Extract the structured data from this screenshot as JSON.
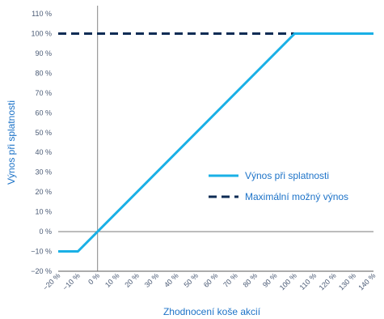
{
  "chart_data": {
    "type": "line",
    "xlabel": "Zhodnocení koše akcií",
    "ylabel": "Výnos při splatnosti",
    "xlim": [
      -20,
      140
    ],
    "ylim": [
      -20,
      110
    ],
    "x_ticks": [
      "−20 %",
      "−10 %",
      "0 %",
      "10 %",
      "20 %",
      "30 %",
      "40 %",
      "50 %",
      "60 %",
      "70 %",
      "80 %",
      "90 %",
      "100 %",
      "110 %",
      "120 %",
      "130 %",
      "140 %"
    ],
    "y_ticks": [
      "−20 %",
      "−10 %",
      "0 %",
      "10 %",
      "20 %",
      "30 %",
      "40 %",
      "50 %",
      "60 %",
      "70 %",
      "80 %",
      "90 %",
      "100 %",
      "110 %"
    ],
    "series": [
      {
        "name": "Výnos při splatnosti",
        "style": "solid",
        "color": "#1ab0e6",
        "x": [
          -20,
          -10,
          100,
          140
        ],
        "y": [
          -10,
          -10,
          100,
          100
        ]
      },
      {
        "name": "Maximální možný výnos",
        "style": "dashed",
        "color": "#0d2c54",
        "x": [
          -20,
          140
        ],
        "y": [
          100,
          100
        ]
      }
    ],
    "legend_position": "center-right"
  }
}
